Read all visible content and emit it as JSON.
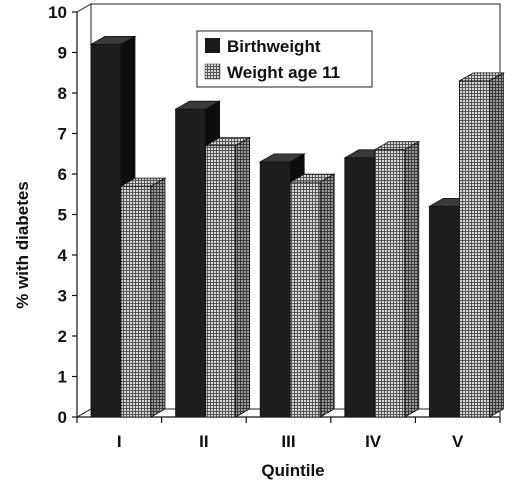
{
  "chart_data": {
    "type": "bar",
    "style": "3d clustered columns",
    "title": "",
    "xlabel": "Quintile",
    "ylabel": "% with diabetes",
    "ylim": [
      0,
      10
    ],
    "yticks": [
      0,
      1,
      2,
      3,
      4,
      5,
      6,
      7,
      8,
      9,
      10
    ],
    "grid": false,
    "legend_position": "top-center",
    "categories": [
      "I",
      "II",
      "III",
      "IV",
      "V"
    ],
    "series": [
      {
        "name": "Birthweight",
        "values": [
          9.2,
          7.6,
          6.3,
          6.4,
          5.2
        ],
        "color": "#1a1a1a",
        "pattern": "solid-dark"
      },
      {
        "name": "Weight age 11",
        "values": [
          5.7,
          6.7,
          5.8,
          6.6,
          8.3
        ],
        "color": "#9a9a9a",
        "pattern": "crosshatch"
      }
    ]
  }
}
